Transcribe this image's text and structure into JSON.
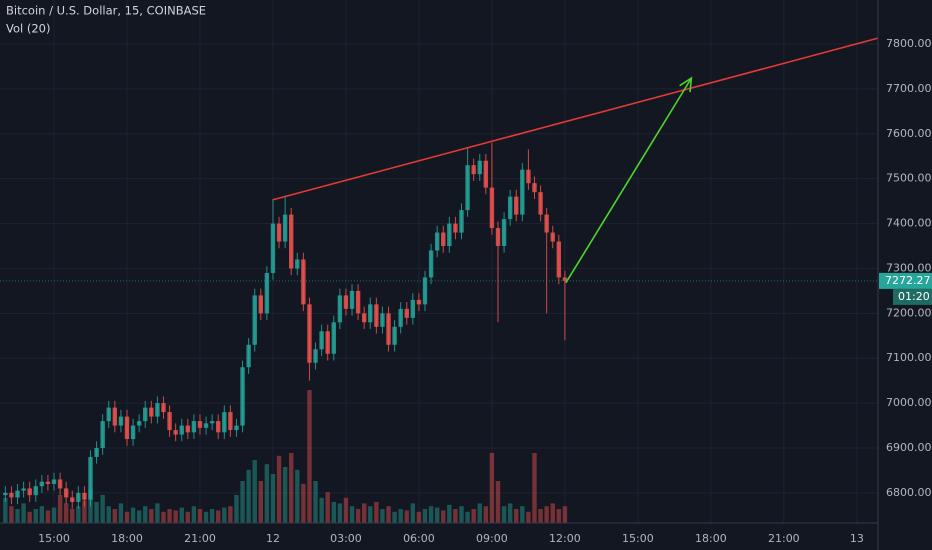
{
  "chart_data": {
    "type": "candlestick",
    "title": "Bitcoin / U.S. Dollar, 15, COINBASE",
    "subtitle": "Vol (20)",
    "countdown": "01:20",
    "up_color": "#26a69a",
    "down_color": "#ef5350",
    "xlim": [
      12.78,
      48.87
    ],
    "xticks": [
      {
        "value": 15,
        "label": "15:00"
      },
      {
        "value": 18,
        "label": "18:00"
      },
      {
        "value": 21,
        "label": "21:00"
      },
      {
        "value": 24,
        "label": "12"
      },
      {
        "value": 27,
        "label": "03:00"
      },
      {
        "value": 30,
        "label": "06:00"
      },
      {
        "value": 33,
        "label": "09:00"
      },
      {
        "value": 36,
        "label": "12:00"
      },
      {
        "value": 39,
        "label": "15:00"
      },
      {
        "value": 42,
        "label": "18:00"
      },
      {
        "value": 45,
        "label": "21:00"
      },
      {
        "value": 48,
        "label": "13"
      }
    ],
    "ylim": [
      6733,
      7898
    ],
    "yticks": [
      {
        "value": 6800,
        "label": "6800.00"
      },
      {
        "value": 6900,
        "label": "6900.00"
      },
      {
        "value": 7000,
        "label": "7000.00"
      },
      {
        "value": 7100,
        "label": "7100.00"
      },
      {
        "value": 7200,
        "label": "7200.00"
      },
      {
        "value": 7300,
        "label": "7300.00"
      },
      {
        "value": 7400,
        "label": "7400.00"
      },
      {
        "value": 7500,
        "label": "7500.00"
      },
      {
        "value": 7600,
        "label": "7600.00"
      },
      {
        "value": 7700,
        "label": "7700.00"
      },
      {
        "value": 7800,
        "label": "7800.00"
      }
    ],
    "y2lim": [
      0,
      100
    ],
    "grid": true,
    "x": [
      13,
      13.25,
      13.5,
      13.75,
      14,
      14.25,
      14.5,
      14.75,
      15,
      15.25,
      15.5,
      15.75,
      16,
      16.25,
      16.5,
      16.75,
      17,
      17.25,
      17.5,
      17.75,
      18,
      18.25,
      18.5,
      18.75,
      19,
      19.25,
      19.5,
      19.75,
      20,
      20.25,
      20.5,
      20.75,
      21,
      21.25,
      21.5,
      21.75,
      22,
      22.25,
      22.5,
      22.75,
      23,
      23.25,
      23.5,
      23.75,
      24,
      24.25,
      24.5,
      24.75,
      25,
      25.25,
      25.5,
      25.75,
      26,
      26.25,
      26.5,
      26.75,
      27,
      27.25,
      27.5,
      27.75,
      28,
      28.25,
      28.5,
      28.75,
      29,
      29.25,
      29.5,
      29.75,
      30,
      30.25,
      30.5,
      30.75,
      31,
      31.25,
      31.5,
      31.75,
      32,
      32.25,
      32.5,
      32.75,
      33,
      33.25,
      33.5,
      33.75,
      34,
      34.25,
      34.5,
      34.75,
      35,
      35.25,
      35.5,
      35.75,
      36
    ],
    "open": [
      6795,
      6800,
      6790,
      6805,
      6810,
      6795,
      6815,
      6825,
      6820,
      6830,
      6810,
      6790,
      6780,
      6800,
      6785,
      6880,
      6900,
      6960,
      6990,
      6950,
      6970,
      6920,
      6950,
      6960,
      6990,
      6970,
      7000,
      6980,
      6940,
      6930,
      6950,
      6935,
      6960,
      6945,
      6955,
      6960,
      6935,
      6980,
      6940,
      6950,
      7080,
      7130,
      7240,
      7200,
      7290,
      7400,
      7360,
      7420,
      7300,
      7320,
      7220,
      7090,
      7120,
      7160,
      7110,
      7180,
      7240,
      7210,
      7250,
      7200,
      7180,
      7220,
      7170,
      7200,
      7130,
      7170,
      7210,
      7190,
      7230,
      7220,
      7280,
      7340,
      7380,
      7350,
      7400,
      7380,
      7430,
      7530,
      7510,
      7540,
      7480,
      7390,
      7350,
      7410,
      7460,
      7420,
      7520,
      7490,
      7470,
      7420,
      7380,
      7360,
      7280
    ],
    "high": [
      6815,
      6815,
      6820,
      6825,
      6825,
      6830,
      6840,
      6840,
      6845,
      6845,
      6825,
      6805,
      6815,
      6815,
      6895,
      6915,
      6975,
      7005,
      7005,
      6985,
      6985,
      6965,
      6975,
      7005,
      7005,
      7015,
      7015,
      6995,
      6955,
      6965,
      6965,
      6975,
      6975,
      6970,
      6975,
      6975,
      6995,
      6995,
      6965,
      7095,
      7145,
      7255,
      7255,
      7305,
      7455,
      7415,
      7460,
      7435,
      7335,
      7335,
      7235,
      7135,
      7175,
      7175,
      7195,
      7255,
      7255,
      7265,
      7265,
      7215,
      7235,
      7235,
      7215,
      7215,
      7185,
      7225,
      7225,
      7245,
      7245,
      7295,
      7355,
      7395,
      7395,
      7415,
      7415,
      7445,
      7570,
      7545,
      7555,
      7555,
      7580,
      7405,
      7425,
      7475,
      7475,
      7535,
      7565,
      7505,
      7485,
      7435,
      7395,
      7375,
      7295
    ],
    "low": [
      6780,
      6775,
      6775,
      6790,
      6780,
      6780,
      6800,
      6805,
      6805,
      6795,
      6775,
      6765,
      6765,
      6770,
      6770,
      6865,
      6885,
      6945,
      6935,
      6935,
      6905,
      6905,
      6935,
      6945,
      6955,
      6955,
      6965,
      6925,
      6915,
      6915,
      6920,
      6920,
      6930,
      6930,
      6940,
      6920,
      6920,
      6925,
      6925,
      6935,
      7065,
      7115,
      7185,
      7185,
      7275,
      7345,
      7345,
      7285,
      7285,
      7205,
      7050,
      7075,
      7105,
      7095,
      7095,
      7165,
      7195,
      7195,
      7185,
      7165,
      7165,
      7155,
      7155,
      7115,
      7115,
      7155,
      7175,
      7175,
      7205,
      7205,
      7265,
      7325,
      7335,
      7335,
      7365,
      7365,
      7415,
      7495,
      7495,
      7465,
      7375,
      7180,
      7335,
      7395,
      7405,
      7405,
      7475,
      7455,
      7405,
      7200,
      7345,
      7265,
      7140
    ],
    "close": [
      6800,
      6790,
      6805,
      6810,
      6795,
      6815,
      6825,
      6820,
      6830,
      6810,
      6790,
      6780,
      6800,
      6785,
      6880,
      6900,
      6960,
      6990,
      6950,
      6970,
      6920,
      6950,
      6960,
      6990,
      6970,
      7000,
      6980,
      6940,
      6930,
      6950,
      6935,
      6960,
      6945,
      6955,
      6960,
      6935,
      6980,
      6940,
      6950,
      7080,
      7130,
      7240,
      7200,
      7290,
      7400,
      7360,
      7420,
      7300,
      7320,
      7220,
      7090,
      7120,
      7160,
      7110,
      7180,
      7240,
      7210,
      7250,
      7200,
      7180,
      7220,
      7170,
      7200,
      7130,
      7170,
      7210,
      7190,
      7230,
      7220,
      7280,
      7340,
      7380,
      7350,
      7400,
      7380,
      7430,
      7530,
      7510,
      7540,
      7480,
      7390,
      7350,
      7410,
      7460,
      7420,
      7520,
      7490,
      7470,
      7420,
      7380,
      7360,
      7280,
      7272.27
    ],
    "volume": [
      18,
      12,
      10,
      14,
      8,
      10,
      12,
      9,
      11,
      20,
      14,
      10,
      12,
      16,
      24,
      15,
      20,
      12,
      10,
      14,
      8,
      11,
      9,
      12,
      10,
      14,
      8,
      10,
      9,
      11,
      8,
      12,
      10,
      8,
      10,
      9,
      11,
      12,
      20,
      30,
      38,
      45,
      30,
      42,
      35,
      48,
      40,
      50,
      38,
      28,
      95,
      30,
      18,
      22,
      15,
      14,
      18,
      12,
      10,
      14,
      12,
      15,
      10,
      12,
      8,
      10,
      9,
      14,
      8,
      10,
      12,
      11,
      9,
      13,
      10,
      12,
      8,
      10,
      14,
      12,
      50,
      30,
      12,
      14,
      10,
      12,
      8,
      50,
      10,
      12,
      14,
      10,
      12
    ],
    "lines": [
      {
        "color": "#e53935",
        "x": [
          24,
          48.87
        ],
        "y": [
          7453,
          7813
        ]
      },
      {
        "color": "#4cd62b",
        "x": [
          36.04,
          41.2
        ],
        "y": [
          7268,
          7724
        ],
        "arrow": true
      }
    ]
  }
}
